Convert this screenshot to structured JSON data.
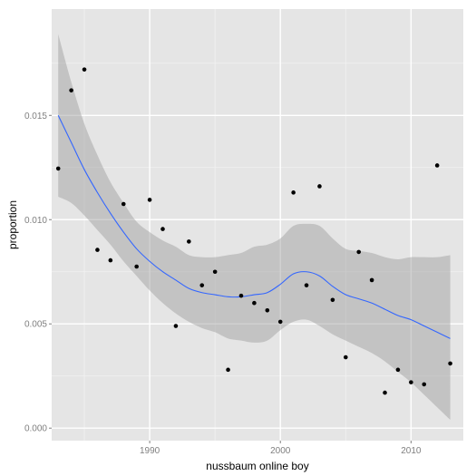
{
  "chart_data": {
    "type": "scatter",
    "title": "",
    "xlabel": "nussbaum online boy",
    "ylabel": "proportion",
    "xlim": [
      1982.5,
      2014
    ],
    "ylim": [
      -0.0006,
      0.0201
    ],
    "x_ticks": [
      1990,
      2000,
      2010
    ],
    "y_ticks": [
      0.0,
      0.005,
      0.01,
      0.015
    ],
    "x_tick_labels": [
      "1990",
      "2000",
      "2010"
    ],
    "y_tick_labels": [
      "0.000",
      "0.005",
      "0.010",
      "0.015"
    ],
    "grid": true,
    "legend": "none",
    "colors": {
      "panel_background": "#e5e5e5",
      "grid_major": "#ffffff",
      "grid_minor": "#f2f2f2",
      "points": "#000000",
      "smooth_line": "#3366ff",
      "confidence_band": "#999999"
    },
    "points": {
      "x": [
        1983,
        1984,
        1985,
        1986,
        1987,
        1988,
        1989,
        1990,
        1991,
        1992,
        1993,
        1994,
        1995,
        1996,
        1997,
        1998,
        1999,
        2000,
        2001,
        2002,
        2003,
        2004,
        2005,
        2006,
        2007,
        2008,
        2009,
        2010,
        2011,
        2012,
        2013
      ],
      "y": [
        0.01245,
        0.0162,
        0.0172,
        0.00855,
        0.00805,
        0.01075,
        0.00775,
        0.01095,
        0.00955,
        0.0049,
        0.00895,
        0.00685,
        0.0075,
        0.0028,
        0.00635,
        0.006,
        0.00565,
        0.0051,
        0.0113,
        0.00685,
        0.0116,
        0.00615,
        0.0034,
        0.00845,
        0.0071,
        0.0017,
        0.0028,
        0.0022,
        0.0021,
        0.0126,
        0.0031
      ]
    },
    "smooth": {
      "method": "loess",
      "x": [
        1983,
        1984,
        1985,
        1986,
        1987,
        1988,
        1989,
        1990,
        1991,
        1992,
        1993,
        1994,
        1995,
        1996,
        1997,
        1998,
        1999,
        2000,
        2001,
        2002,
        2003,
        2004,
        2005,
        2006,
        2007,
        2008,
        2009,
        2010,
        2011,
        2012,
        2013
      ],
      "y": [
        0.015,
        0.0137,
        0.0124,
        0.0113,
        0.0103,
        0.0094,
        0.0086,
        0.008,
        0.0075,
        0.0071,
        0.0067,
        0.0065,
        0.0064,
        0.0063,
        0.0063,
        0.0064,
        0.0065,
        0.0069,
        0.0074,
        0.0075,
        0.0073,
        0.0068,
        0.0064,
        0.0062,
        0.006,
        0.0057,
        0.0054,
        0.0052,
        0.0049,
        0.0046,
        0.0043
      ],
      "lower": [
        0.0111,
        0.0108,
        0.0102,
        0.0095,
        0.0088,
        0.008,
        0.0073,
        0.0066,
        0.006,
        0.0055,
        0.0051,
        0.0048,
        0.0046,
        0.0043,
        0.0042,
        0.0041,
        0.0042,
        0.0047,
        0.0051,
        0.0052,
        0.0049,
        0.0045,
        0.0042,
        0.0039,
        0.0036,
        0.0032,
        0.0027,
        0.0022,
        0.0016,
        0.001,
        0.0004
      ],
      "upper": [
        0.0189,
        0.0166,
        0.0146,
        0.0131,
        0.0118,
        0.0108,
        0.0099,
        0.0094,
        0.009,
        0.0087,
        0.0083,
        0.0082,
        0.0082,
        0.0083,
        0.0084,
        0.0087,
        0.0088,
        0.0091,
        0.0097,
        0.0098,
        0.0097,
        0.0091,
        0.0086,
        0.0085,
        0.0084,
        0.0082,
        0.0081,
        0.0082,
        0.0082,
        0.0082,
        0.0083
      ]
    }
  }
}
